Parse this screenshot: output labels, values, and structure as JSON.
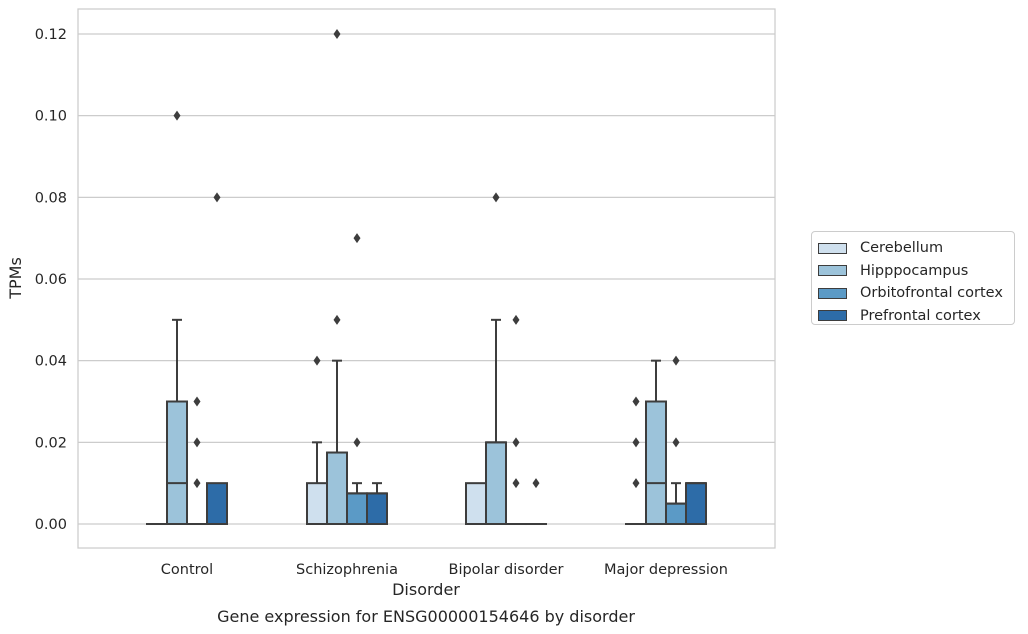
{
  "chart_data": {
    "type": "box",
    "title": "Gene expression for ENSG00000154646 by disorder",
    "xlabel": "Disorder",
    "ylabel": "TPMs",
    "ylim": [
      -0.006,
      0.126
    ],
    "yticks": [
      0.0,
      0.02,
      0.04,
      0.06,
      0.08,
      0.1,
      0.12
    ],
    "ytick_labels": [
      "0.00",
      "0.02",
      "0.04",
      "0.06",
      "0.08",
      "0.10",
      "0.12"
    ],
    "grid": "horizontal",
    "legend_position": "right",
    "categories": [
      "Control",
      "Schizophrenia",
      "Bipolar disorder",
      "Major depression"
    ],
    "series": [
      {
        "name": "Cerebellum",
        "color": "#cfe0ee",
        "boxes": [
          {
            "q1": 0,
            "median": 0,
            "q3": 0,
            "whislo": 0,
            "whishi": 0,
            "fliers": []
          },
          {
            "q1": 0,
            "median": 0,
            "q3": 0.01,
            "whislo": 0,
            "whishi": 0.02,
            "fliers": [
              0.04
            ]
          },
          {
            "q1": 0,
            "median": 0,
            "q3": 0.01,
            "whislo": 0,
            "whishi": 0.01,
            "fliers": []
          },
          {
            "q1": 0,
            "median": 0,
            "q3": 0,
            "whislo": 0,
            "whishi": 0,
            "fliers": [
              0.01,
              0.02,
              0.03
            ]
          }
        ]
      },
      {
        "name": "Hipppocampus",
        "color": "#9cc3da",
        "boxes": [
          {
            "q1": 0,
            "median": 0.01,
            "q3": 0.03,
            "whislo": 0,
            "whishi": 0.05,
            "fliers": [
              0.1
            ]
          },
          {
            "q1": 0,
            "median": 0.0175,
            "q3": 0.0175,
            "whislo": 0,
            "whishi": 0.04,
            "fliers": [
              0.05,
              0.12
            ]
          },
          {
            "q1": 0,
            "median": 0.02,
            "q3": 0.02,
            "whislo": 0,
            "whishi": 0.05,
            "fliers": [
              0.08
            ]
          },
          {
            "q1": 0,
            "median": 0.01,
            "q3": 0.03,
            "whislo": 0,
            "whishi": 0.04,
            "fliers": []
          }
        ]
      },
      {
        "name": "Orbitofrontal cortex",
        "color": "#5b9ac6",
        "boxes": [
          {
            "q1": 0,
            "median": 0,
            "q3": 0,
            "whislo": 0,
            "whishi": 0,
            "fliers": [
              0.01,
              0.02,
              0.03
            ]
          },
          {
            "q1": 0,
            "median": 0.0075,
            "q3": 0.0075,
            "whislo": 0,
            "whishi": 0.01,
            "fliers": [
              0.02,
              0.07
            ]
          },
          {
            "q1": 0,
            "median": 0,
            "q3": 0,
            "whislo": 0,
            "whishi": 0,
            "fliers": [
              0.01,
              0.02,
              0.05
            ]
          },
          {
            "q1": 0,
            "median": 0.005,
            "q3": 0.005,
            "whislo": 0,
            "whishi": 0.01,
            "fliers": [
              0.02,
              0.04
            ]
          }
        ]
      },
      {
        "name": "Prefrontal cortex",
        "color": "#2d6ca8",
        "boxes": [
          {
            "q1": 0,
            "median": 0,
            "q3": 0.01,
            "whislo": 0,
            "whishi": 0.01,
            "fliers": [
              0.08
            ]
          },
          {
            "q1": 0,
            "median": 0.0075,
            "q3": 0.0075,
            "whislo": 0,
            "whishi": 0.01,
            "fliers": []
          },
          {
            "q1": 0,
            "median": 0,
            "q3": 0,
            "whislo": 0,
            "whishi": 0,
            "fliers": [
              0.01
            ]
          },
          {
            "q1": 0,
            "median": 0.01,
            "q3": 0.01,
            "whislo": 0,
            "whishi": 0.01,
            "fliers": []
          }
        ]
      }
    ]
  }
}
